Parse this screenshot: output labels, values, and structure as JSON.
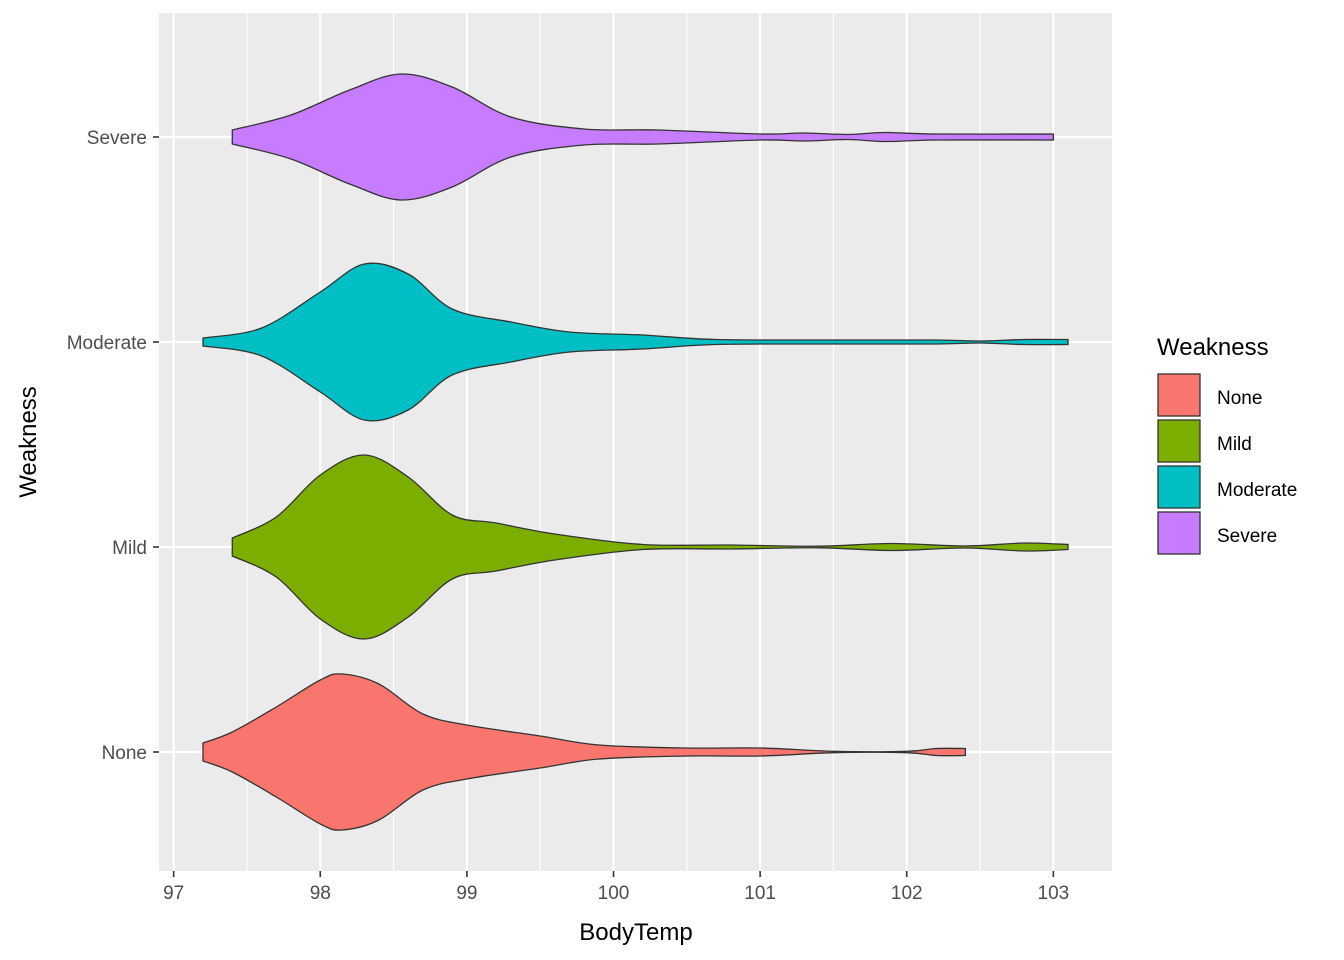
{
  "chart_data": {
    "type": "violin",
    "orientation": "horizontal",
    "xlabel": "BodyTemp",
    "ylabel": "Weakness",
    "xlim": [
      96.9,
      103.4
    ],
    "x_ticks": [
      97,
      98,
      99,
      100,
      101,
      102,
      103
    ],
    "categories": [
      "None",
      "Mild",
      "Moderate",
      "Severe"
    ],
    "legend": {
      "title": "Weakness",
      "position": "right",
      "entries": [
        "None",
        "Mild",
        "Moderate",
        "Severe"
      ]
    },
    "background": "#ebebeb",
    "grid": true,
    "series": [
      {
        "name": "None",
        "color": "#F8766D",
        "min": 97.2,
        "max": 102.4,
        "density_profile": [
          [
            97.2,
            0.09
          ],
          [
            97.4,
            0.2
          ],
          [
            97.7,
            0.45
          ],
          [
            98.0,
            0.72
          ],
          [
            98.15,
            0.78
          ],
          [
            98.4,
            0.68
          ],
          [
            98.7,
            0.38
          ],
          [
            99.0,
            0.27
          ],
          [
            99.5,
            0.16
          ],
          [
            99.9,
            0.07
          ],
          [
            100.5,
            0.04
          ],
          [
            101.0,
            0.04
          ],
          [
            101.5,
            0.007
          ],
          [
            102.0,
            0.007
          ],
          [
            102.2,
            0.035
          ],
          [
            102.4,
            0.035
          ]
        ]
      },
      {
        "name": "Mild",
        "color": "#7CAE00",
        "min": 97.4,
        "max": 103.1,
        "density_profile": [
          [
            97.4,
            0.09
          ],
          [
            97.7,
            0.3
          ],
          [
            98.0,
            0.72
          ],
          [
            98.3,
            0.92
          ],
          [
            98.6,
            0.7
          ],
          [
            98.9,
            0.32
          ],
          [
            99.2,
            0.24
          ],
          [
            99.6,
            0.13
          ],
          [
            100.2,
            0.025
          ],
          [
            100.8,
            0.02
          ],
          [
            101.4,
            0.008
          ],
          [
            101.9,
            0.035
          ],
          [
            102.4,
            0.01
          ],
          [
            102.8,
            0.04
          ],
          [
            103.1,
            0.025
          ]
        ]
      },
      {
        "name": "Moderate",
        "color": "#00BFC4",
        "min": 97.2,
        "max": 103.1,
        "density_profile": [
          [
            97.2,
            0.04
          ],
          [
            97.6,
            0.14
          ],
          [
            98.0,
            0.5
          ],
          [
            98.3,
            0.78
          ],
          [
            98.6,
            0.68
          ],
          [
            98.9,
            0.33
          ],
          [
            99.3,
            0.2
          ],
          [
            99.7,
            0.1
          ],
          [
            100.2,
            0.07
          ],
          [
            100.7,
            0.025
          ],
          [
            101.5,
            0.02
          ],
          [
            102.2,
            0.02
          ],
          [
            102.5,
            0.01
          ],
          [
            102.8,
            0.025
          ],
          [
            103.1,
            0.025
          ]
        ]
      },
      {
        "name": "Severe",
        "color": "#C77CFF",
        "min": 97.4,
        "max": 103.0,
        "density_profile": [
          [
            97.4,
            0.07
          ],
          [
            97.8,
            0.22
          ],
          [
            98.2,
            0.47
          ],
          [
            98.55,
            0.63
          ],
          [
            98.9,
            0.5
          ],
          [
            99.3,
            0.2
          ],
          [
            99.8,
            0.08
          ],
          [
            100.3,
            0.07
          ],
          [
            101.0,
            0.03
          ],
          [
            101.3,
            0.04
          ],
          [
            101.6,
            0.025
          ],
          [
            101.85,
            0.045
          ],
          [
            102.2,
            0.03
          ],
          [
            103.0,
            0.03
          ]
        ]
      }
    ]
  }
}
